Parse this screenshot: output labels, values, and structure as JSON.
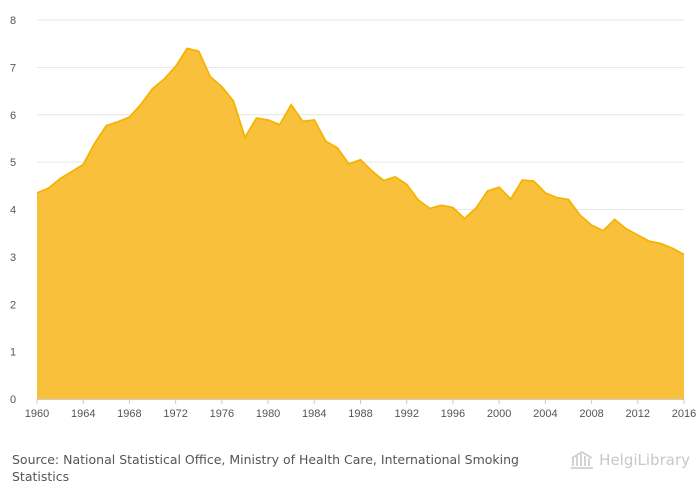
{
  "source": {
    "label": "Source:",
    "text": "National Statistical Office, Ministry of Health Care, International Smoking Statistics"
  },
  "logo": {
    "text": "HelgiLibrary",
    "icon": "library-building-icon"
  },
  "colors": {
    "fill": "#f9c13b",
    "line": "#f5b301",
    "grid": "#e6e6e6",
    "axis": "#cccccc",
    "text": "#555555"
  },
  "chart_data": {
    "type": "area",
    "title": "",
    "xlabel": "",
    "ylabel": "",
    "ylim": [
      0,
      8
    ],
    "yticks": [
      0,
      1,
      2,
      3,
      4,
      5,
      6,
      7,
      8
    ],
    "xlim": [
      1960,
      2016
    ],
    "xticks": [
      1960,
      1964,
      1968,
      1972,
      1976,
      1980,
      1984,
      1988,
      1992,
      1996,
      2000,
      2004,
      2008,
      2012,
      2016
    ],
    "grid": "horizontal",
    "legend": "none",
    "x": [
      1960,
      1961,
      1962,
      1963,
      1964,
      1965,
      1966,
      1967,
      1968,
      1969,
      1970,
      1971,
      1972,
      1973,
      1974,
      1975,
      1976,
      1977,
      1978,
      1979,
      1980,
      1981,
      1982,
      1983,
      1984,
      1985,
      1986,
      1987,
      1988,
      1989,
      1990,
      1991,
      1992,
      1993,
      1994,
      1995,
      1996,
      1997,
      1998,
      1999,
      2000,
      2001,
      2002,
      2003,
      2004,
      2005,
      2006,
      2007,
      2008,
      2009,
      2010,
      2011,
      2012,
      2013,
      2014,
      2015,
      2016
    ],
    "values": [
      4.35,
      4.45,
      4.65,
      4.8,
      4.95,
      5.4,
      5.77,
      5.85,
      5.95,
      6.22,
      6.55,
      6.75,
      7.02,
      7.4,
      7.34,
      6.8,
      6.59,
      6.29,
      5.52,
      5.93,
      5.89,
      5.79,
      6.21,
      5.86,
      5.89,
      5.44,
      5.3,
      4.96,
      5.05,
      4.81,
      4.61,
      4.69,
      4.53,
      4.2,
      4.02,
      4.09,
      4.04,
      3.81,
      4.03,
      4.39,
      4.47,
      4.22,
      4.62,
      4.6,
      4.35,
      4.25,
      4.21,
      3.88,
      3.67,
      3.55,
      3.79,
      3.59,
      3.46,
      3.33,
      3.28,
      3.18,
      3.05
    ]
  }
}
